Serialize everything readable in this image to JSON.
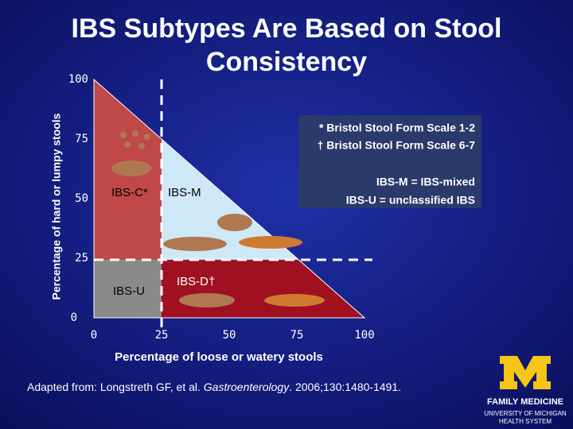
{
  "title": "IBS Subtypes Are Based on Stool Consistency",
  "y_axis": {
    "label": "Percentage of hard or lumpy stools",
    "ticks": [
      0,
      25,
      50,
      75,
      100
    ]
  },
  "x_axis": {
    "label": "Percentage of loose or watery stools",
    "ticks": [
      0,
      25,
      50,
      75,
      100
    ]
  },
  "regions": {
    "ibs_c": "IBS-C*",
    "ibs_m": "IBS-M",
    "ibs_u": "IBS-U",
    "ibs_d": "IBS-D†"
  },
  "notes": [
    "* Bristol Stool Form Scale 1-2",
    "† Bristol Stool Form Scale 6-7",
    "IBS-M = IBS-mixed",
    "IBS-U = unclassified IBS"
  ],
  "citation": {
    "before": "Adapted from: Longstreth GF, et al. ",
    "journal": "Gastroenterology",
    "after": ". 2006;130:1480-1491."
  },
  "logo": {
    "name": "FAMILY MEDICINE",
    "line1": "UNIVERSITY OF MICHIGAN",
    "line2": "HEALTH SYSTEM"
  }
}
